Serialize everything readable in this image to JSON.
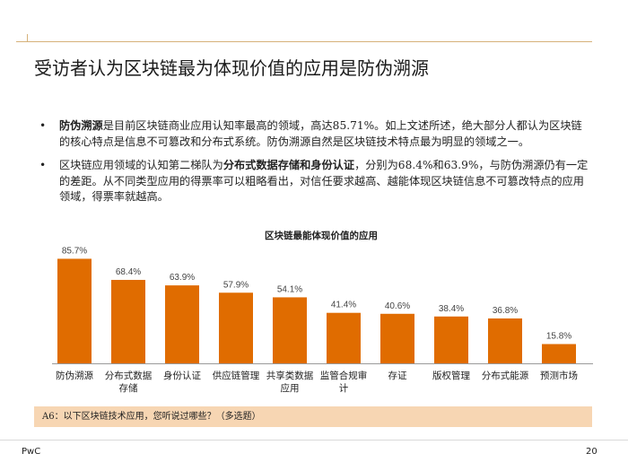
{
  "header": {
    "title": "受访者认为区块链最为体现价值的应用是防伪溯源"
  },
  "bullets": [
    {
      "marker": "•",
      "bold_lead": "防伪溯源",
      "text": "是目前区块链商业应用认知率最高的领域，高达85.71%。如上文述所述，绝大部分人都认为区块链的核心特点是信息不可篡改和分布式系统。防伪溯源自然是区块链技术特点最为明显的领域之一。"
    },
    {
      "marker": "•",
      "text_before": "区块链应用领域的认知第二梯队为",
      "bold_mid": "分布式数据存储和身份认证",
      "text_after": "，分别为68.4%和63.9%，与防伪溯源仍有一定的差距。从不同类型应用的得票率可以粗略看出，对信任要求越高、越能体现区块链信息不可篡改特点的应用领域，得票率就越高。"
    }
  ],
  "chart_data": {
    "type": "bar",
    "title": "区块链最能体现价值的应用",
    "categories": [
      "防伪溯源",
      "分布式数据存储",
      "身份认证",
      "供应链管理",
      "共享类数据应用",
      "监管合规审计",
      "存证",
      "版权管理",
      "分布式能源",
      "预测市场"
    ],
    "category_lines": [
      [
        "防伪溯源"
      ],
      [
        "分布式数据",
        "存储"
      ],
      [
        "身份认证"
      ],
      [
        "供应链管理"
      ],
      [
        "共享类数据",
        "应用"
      ],
      [
        "监管合规审",
        "计"
      ],
      [
        "存证"
      ],
      [
        "版权管理"
      ],
      [
        "分布式能源"
      ],
      [
        "预测市场"
      ]
    ],
    "values": [
      85.7,
      68.4,
      63.9,
      57.9,
      54.1,
      41.4,
      40.6,
      38.4,
      36.8,
      15.8
    ],
    "value_labels": [
      "85.7%",
      "68.4%",
      "63.9%",
      "57.9%",
      "54.1%",
      "41.4%",
      "40.6%",
      "38.4%",
      "36.8%",
      "15.8%"
    ],
    "ylim": [
      0,
      100
    ],
    "grid": false,
    "legend": "none",
    "bar_color": "#e06c00"
  },
  "note": {
    "text": "A6：以下区块链技术应用，您听说过哪些？（多选题）"
  },
  "footer": {
    "brand": "PwC",
    "page_number": "20"
  },
  "colors": {
    "accent_rule": "#d6b27a",
    "note_bg": "#f7d6b3"
  }
}
